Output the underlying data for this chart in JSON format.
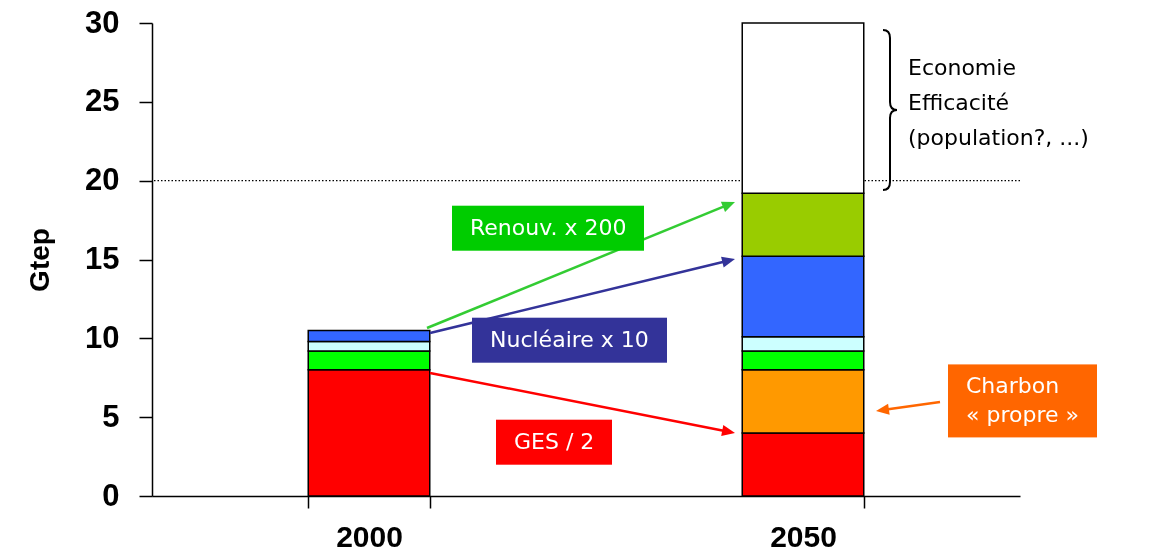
{
  "chart_data": {
    "type": "bar",
    "ylabel": "Gtep",
    "categories": [
      "2000",
      "2050"
    ],
    "stacked": true,
    "series": [
      {
        "color": "#ff0000",
        "values": [
          8,
          4
        ]
      },
      {
        "color": "#ff9900",
        "values": [
          null,
          4
        ]
      },
      {
        "color": "#00ff00",
        "values": [
          1.2,
          1.2
        ]
      },
      {
        "color": "#ccffff",
        "values": [
          0.6,
          0.9
        ]
      },
      {
        "color": "#3366ff",
        "values": [
          0.7,
          5.1
        ]
      },
      {
        "color": "#99cc00",
        "values": [
          null,
          4
        ]
      },
      {
        "color": "#ffffff",
        "values": [
          null,
          10.8
        ]
      }
    ],
    "ylim": [
      0,
      30
    ],
    "yticks": [
      0,
      5,
      10,
      15,
      20,
      25,
      30
    ],
    "grid": false,
    "legend": false,
    "ref_lines": [
      {
        "axis": "y",
        "value": 20,
        "color": "#000000",
        "line_style": "dotted"
      }
    ],
    "annotations": [
      "Economie\nEfficacité\n(population?, ...)",
      "Renouv. x 200",
      "Nucléaire x 10",
      "GES / 2",
      "Charbon\n« propre »"
    ]
  }
}
